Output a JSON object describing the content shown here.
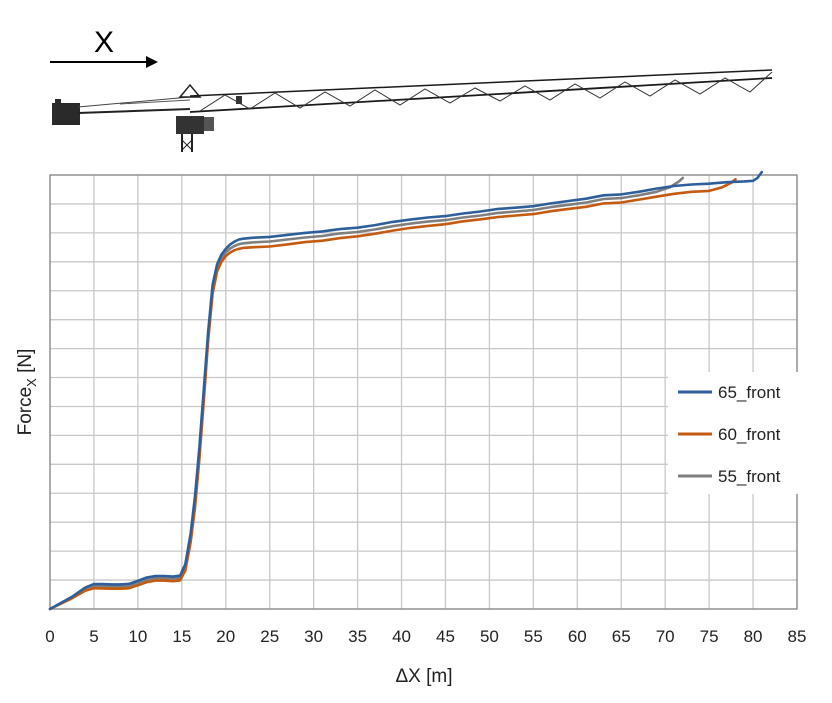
{
  "diagram": {
    "direction_label": "X",
    "object_icon": "tower-crane-jib-icon"
  },
  "chart_data": {
    "type": "line",
    "xlabel": "ΔX  [m]",
    "ylabel_main": "Force",
    "ylabel_sub": "X",
    "ylabel_unit": " [N]",
    "xlim": [
      0,
      85
    ],
    "x_ticks": [
      "0",
      "5",
      "10",
      "15",
      "20",
      "25",
      "30",
      "35",
      "40",
      "45",
      "50",
      "55",
      "60",
      "65",
      "70",
      "75",
      "80",
      "85"
    ],
    "ylim": [
      0,
      15
    ],
    "y_grid_lines": 15,
    "grid": true,
    "legend_position": "right",
    "series": [
      {
        "name": "65_front",
        "color": "#2E5F9B",
        "x": [
          0,
          2.5,
          4,
          5,
          6,
          7,
          8,
          9,
          10,
          11,
          12,
          13,
          14,
          14.8,
          15.4,
          16,
          16.5,
          17,
          17.5,
          18,
          18.5,
          19,
          19.5,
          20,
          20.5,
          21,
          21.5,
          22,
          23,
          25,
          27,
          29,
          31,
          33,
          35,
          37,
          39,
          41,
          43,
          45,
          47,
          49,
          51,
          53,
          55,
          57,
          59,
          61,
          63,
          65,
          67,
          69,
          71,
          73,
          75,
          77,
          79,
          80,
          80.5,
          81
        ],
        "y": [
          0,
          0.42,
          0.74,
          0.86,
          0.86,
          0.85,
          0.85,
          0.87,
          0.97,
          1.09,
          1.14,
          1.14,
          1.12,
          1.15,
          1.55,
          2.6,
          3.9,
          5.6,
          7.6,
          9.6,
          11.2,
          11.9,
          12.25,
          12.45,
          12.6,
          12.7,
          12.77,
          12.8,
          12.83,
          12.86,
          12.93,
          13.0,
          13.05,
          13.13,
          13.18,
          13.27,
          13.38,
          13.46,
          13.53,
          13.58,
          13.67,
          13.74,
          13.83,
          13.87,
          13.92,
          14.02,
          14.1,
          14.18,
          14.3,
          14.33,
          14.42,
          14.53,
          14.62,
          14.67,
          14.7,
          14.75,
          14.78,
          14.8,
          14.9,
          15.1
        ]
      },
      {
        "name": "60_front",
        "color": "#C55A11",
        "x": [
          0,
          2.5,
          4,
          5,
          6,
          7,
          8,
          9,
          10,
          11,
          12,
          13,
          14,
          14.8,
          15.4,
          16,
          16.5,
          17,
          17.5,
          18,
          18.5,
          19,
          19.5,
          20,
          20.5,
          21,
          21.5,
          22,
          23,
          25,
          27,
          29,
          31,
          33,
          35,
          37,
          39,
          41,
          43,
          45,
          47,
          49,
          51,
          53,
          55,
          57,
          59,
          61,
          63,
          65,
          67,
          69,
          71,
          73,
          75,
          76.5,
          77.5,
          78
        ],
        "y": [
          0,
          0.37,
          0.63,
          0.72,
          0.71,
          0.7,
          0.7,
          0.72,
          0.82,
          0.93,
          0.98,
          0.98,
          0.96,
          0.99,
          1.33,
          2.3,
          3.5,
          5.2,
          7.2,
          9.3,
          10.9,
          11.65,
          12.0,
          12.2,
          12.32,
          12.4,
          12.45,
          12.48,
          12.5,
          12.53,
          12.6,
          12.68,
          12.73,
          12.82,
          12.88,
          12.97,
          13.08,
          13.17,
          13.24,
          13.3,
          13.4,
          13.47,
          13.55,
          13.6,
          13.65,
          13.75,
          13.83,
          13.9,
          14.02,
          14.05,
          14.15,
          14.25,
          14.35,
          14.42,
          14.45,
          14.58,
          14.73,
          14.85
        ]
      },
      {
        "name": "55_front",
        "color": "#7F7F7F",
        "x": [
          0,
          2.5,
          4,
          5,
          6,
          7,
          8,
          9,
          10,
          11,
          12,
          13,
          14,
          14.8,
          15.4,
          16,
          16.5,
          17,
          17.5,
          18,
          18.5,
          19,
          19.5,
          20,
          20.5,
          21,
          21.5,
          22,
          23,
          25,
          27,
          29,
          31,
          33,
          35,
          37,
          39,
          41,
          43,
          45,
          47,
          49,
          51,
          53,
          55,
          57,
          59,
          61,
          63,
          65,
          67,
          69,
          70.5,
          71.5,
          72
        ],
        "y": [
          0,
          0.4,
          0.68,
          0.79,
          0.78,
          0.77,
          0.77,
          0.79,
          0.89,
          1.01,
          1.06,
          1.06,
          1.04,
          1.07,
          1.44,
          2.45,
          3.7,
          5.4,
          7.4,
          9.45,
          11.05,
          11.78,
          12.13,
          12.33,
          12.46,
          12.55,
          12.61,
          12.64,
          12.67,
          12.7,
          12.77,
          12.84,
          12.89,
          12.98,
          13.03,
          13.12,
          13.23,
          13.32,
          13.39,
          13.44,
          13.53,
          13.6,
          13.69,
          13.74,
          13.79,
          13.89,
          13.97,
          14.05,
          14.17,
          14.2,
          14.3,
          14.42,
          14.57,
          14.76,
          14.9
        ]
      }
    ]
  }
}
